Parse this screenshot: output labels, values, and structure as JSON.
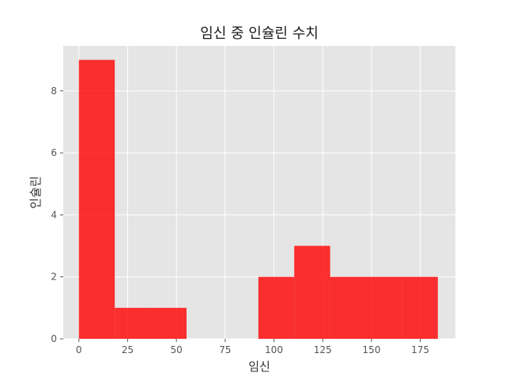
{
  "chart_data": {
    "type": "bar",
    "title": "임신 중 인슐린 수치",
    "xlabel": "임신",
    "ylabel": "인슐린",
    "xlim": [
      -8,
      193
    ],
    "ylim": [
      0,
      9.45
    ],
    "xticks": [
      0,
      25,
      50,
      75,
      100,
      125,
      150,
      175
    ],
    "yticks": [
      0,
      2,
      4,
      6,
      8
    ],
    "grid": true,
    "bar_color": "#ff0000",
    "bins": [
      {
        "x0": 0,
        "x1": 18.4,
        "count": 9
      },
      {
        "x0": 18.4,
        "x1": 36.8,
        "count": 1
      },
      {
        "x0": 36.8,
        "x1": 55.2,
        "count": 1
      },
      {
        "x0": 55.2,
        "x1": 73.6,
        "count": 0
      },
      {
        "x0": 73.6,
        "x1": 92.0,
        "count": 0
      },
      {
        "x0": 92.0,
        "x1": 110.4,
        "count": 2
      },
      {
        "x0": 110.4,
        "x1": 128.8,
        "count": 3
      },
      {
        "x0": 128.8,
        "x1": 147.2,
        "count": 2
      },
      {
        "x0": 147.2,
        "x1": 165.6,
        "count": 2
      },
      {
        "x0": 165.6,
        "x1": 184.0,
        "count": 2
      }
    ]
  }
}
